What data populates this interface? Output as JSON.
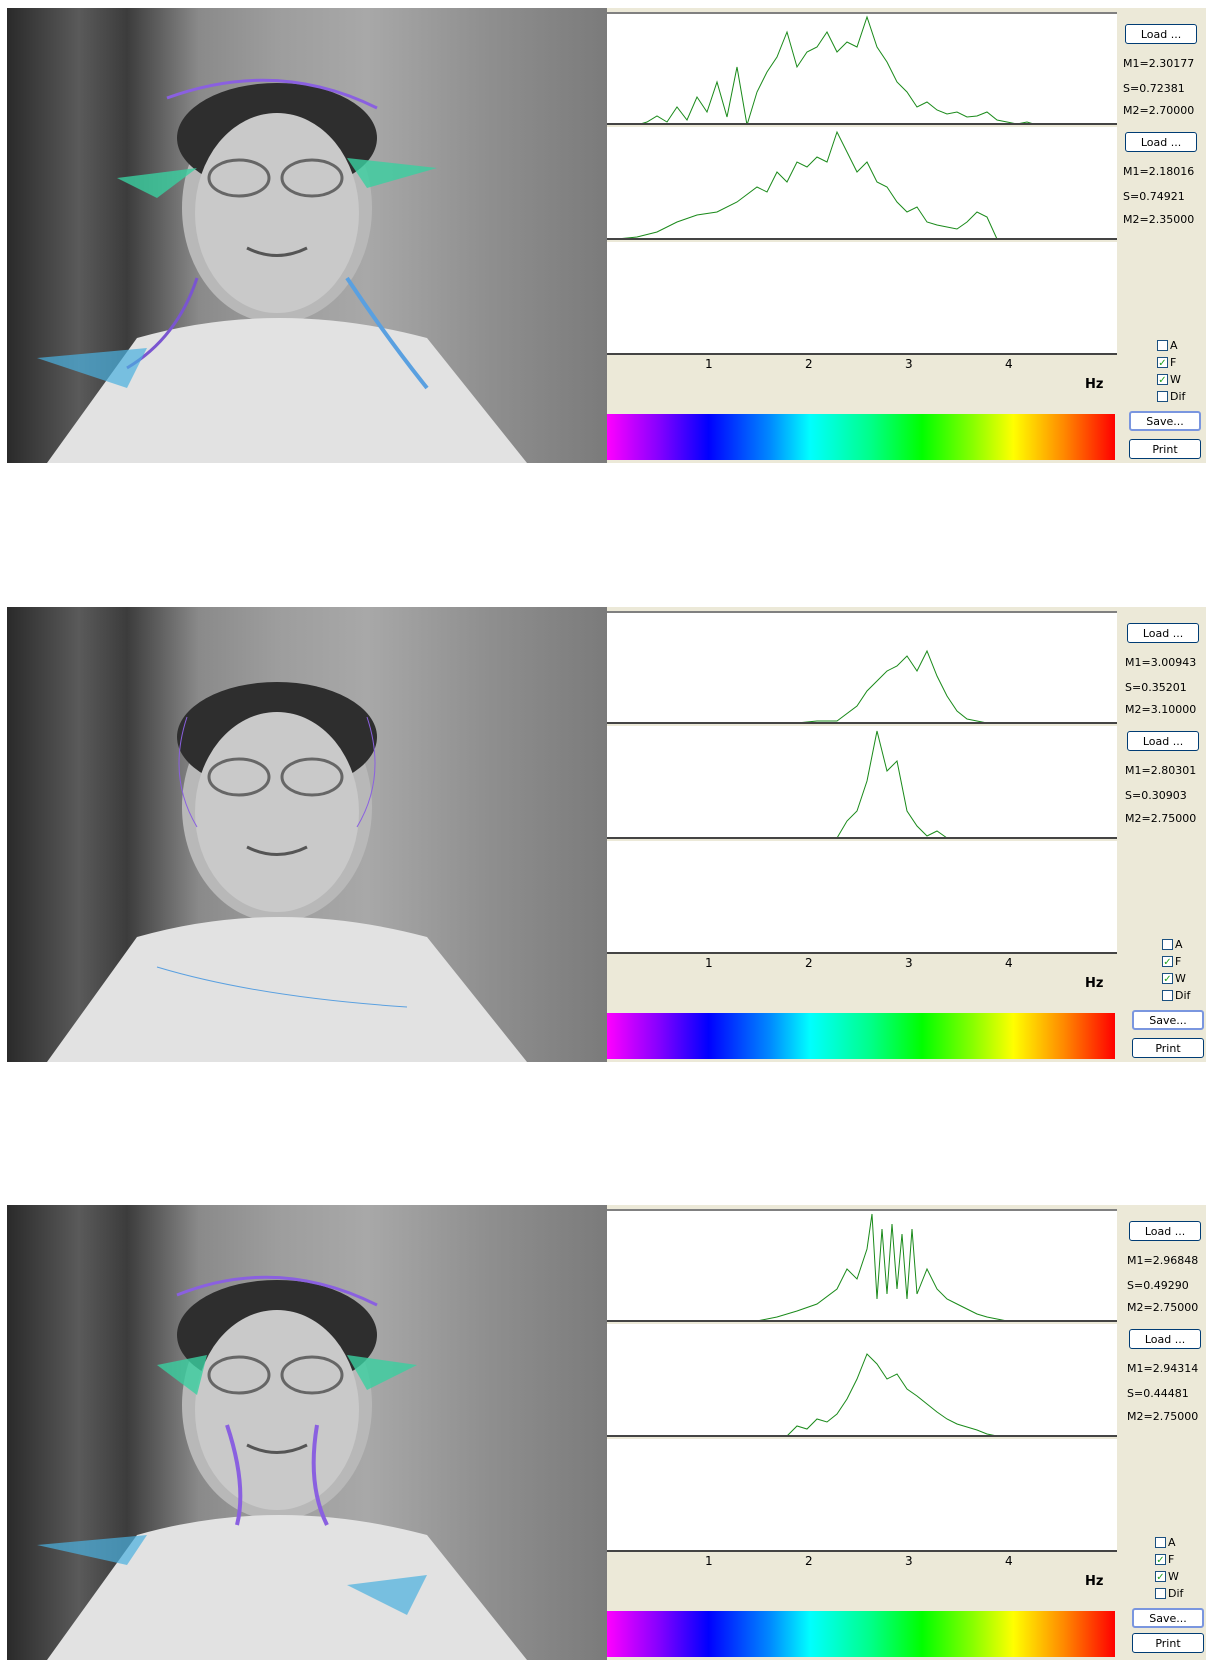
{
  "colors": {
    "curve": "#1a8a1a",
    "panel_bg": "#ece9d8"
  },
  "axis": {
    "ticks": [
      "1",
      "2",
      "3",
      "4"
    ],
    "unit": "Hz"
  },
  "panels": [
    {
      "load1_label": "Load ...",
      "stats1": {
        "m1": "M1=2.30177",
        "s": "S=0.72381",
        "m2": "M2=2.70000"
      },
      "load2_label": "Load ...",
      "stats2": {
        "m1": "M1=2.18016",
        "s": "S=0.74921",
        "m2": "M2=2.35000"
      },
      "checkboxes": [
        {
          "label": "A",
          "checked": false
        },
        {
          "label": "F",
          "checked": true
        },
        {
          "label": "W",
          "checked": true
        },
        {
          "label": "Dif",
          "checked": false
        }
      ],
      "save_label": "Save...",
      "print_label": "Print",
      "curve1_icon": "frequency-histogram",
      "curve2_icon": "frequency-histogram"
    },
    {
      "load1_label": "Load ...",
      "stats1": {
        "m1": "M1=3.00943",
        "s": "S=0.35201",
        "m2": "M2=3.10000"
      },
      "load2_label": "Load ...",
      "stats2": {
        "m1": "M1=2.80301",
        "s": "S=0.30903",
        "m2": "M2=2.75000"
      },
      "checkboxes": [
        {
          "label": "A",
          "checked": false
        },
        {
          "label": "F",
          "checked": true
        },
        {
          "label": "W",
          "checked": true
        },
        {
          "label": "Dif",
          "checked": false
        }
      ],
      "save_label": "Save...",
      "print_label": "Print"
    },
    {
      "load1_label": "Load ...",
      "stats1": {
        "m1": "M1=2.96848",
        "s": "S=0.49290",
        "m2": "M2=2.75000"
      },
      "load2_label": "Load ...",
      "stats2": {
        "m1": "M1=2.94314",
        "s": "S=0.44481",
        "m2": "M2=2.75000"
      },
      "checkboxes": [
        {
          "label": "A",
          "checked": false
        },
        {
          "label": "F",
          "checked": true
        },
        {
          "label": "W",
          "checked": true
        },
        {
          "label": "Dif",
          "checked": false
        }
      ],
      "save_label": "Save...",
      "print_label": "Print"
    }
  ]
}
